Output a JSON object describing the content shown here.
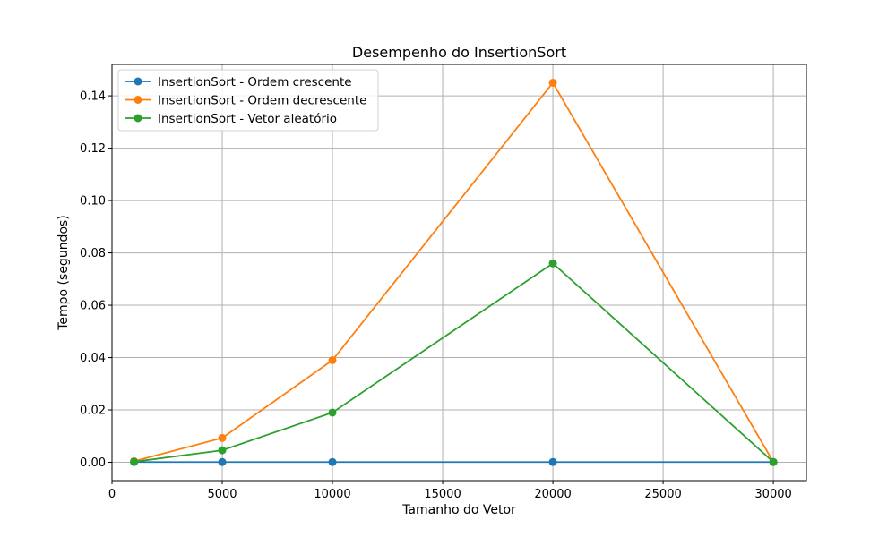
{
  "chart_data": {
    "type": "line",
    "title": "Desempenho do InsertionSort",
    "xlabel": "Tamanho do Vetor",
    "ylabel": "Tempo (segundos)",
    "x": [
      1000,
      5000,
      10000,
      20000,
      30000
    ],
    "xlim": [
      0,
      31500
    ],
    "ylim": [
      -0.007,
      0.152
    ],
    "xticks": [
      0,
      5000,
      10000,
      15000,
      20000,
      25000,
      30000
    ],
    "xtick_labels": [
      "0",
      "5000",
      "10000",
      "15000",
      "20000",
      "25000",
      "30000"
    ],
    "yticks": [
      0.0,
      0.02,
      0.04,
      0.06,
      0.08,
      0.1,
      0.12,
      0.14
    ],
    "ytick_labels": [
      "0.00",
      "0.02",
      "0.04",
      "0.06",
      "0.08",
      "0.10",
      "0.12",
      "0.14"
    ],
    "grid": true,
    "legend_position": "top-left",
    "series": [
      {
        "name": "InsertionSort - Ordem crescente",
        "color": "#1f77b4",
        "values": [
          0.0001,
          0.0001,
          0.0001,
          0.0001,
          0.0001
        ]
      },
      {
        "name": "InsertionSort - Ordem decrescente",
        "color": "#ff7f0e",
        "values": [
          0.0004,
          0.0093,
          0.039,
          0.145,
          0.0001
        ]
      },
      {
        "name": "InsertionSort - Vetor aleatório",
        "color": "#2ca02c",
        "values": [
          0.0002,
          0.0046,
          0.019,
          0.076,
          0.0001
        ]
      }
    ]
  }
}
